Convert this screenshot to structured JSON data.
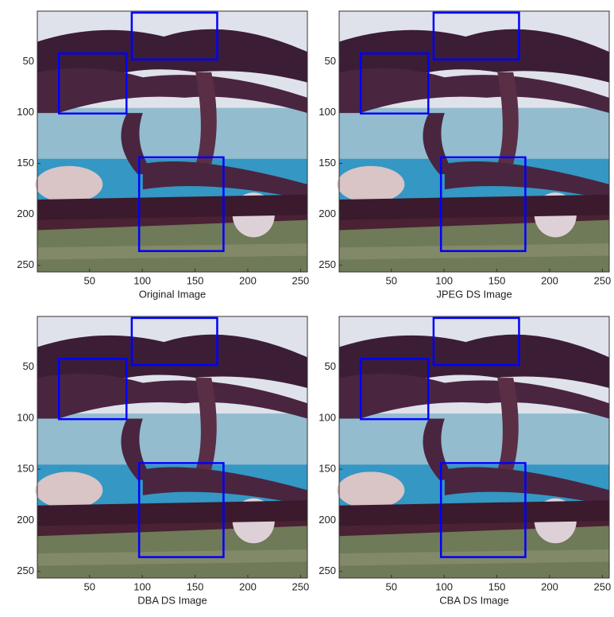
{
  "chart_data": [
    {
      "type": "image",
      "xlabel": "Original Image",
      "xlim": [
        0.5,
        256.5
      ],
      "ylim": [
        0.5,
        256.5
      ],
      "y_reversed": true,
      "xticks": [
        50,
        100,
        150,
        200,
        250
      ],
      "yticks": [
        50,
        100,
        150,
        200,
        250
      ],
      "box_color": "#0000ff",
      "boxes": [
        {
          "x": [
            90,
            171
          ],
          "y": [
            2,
            48
          ]
        },
        {
          "x": [
            21,
            85
          ],
          "y": [
            42,
            101
          ]
        },
        {
          "x": [
            97,
            177
          ],
          "y": [
            144,
            236
          ]
        }
      ]
    },
    {
      "type": "image",
      "xlabel": "JPEG DS Image",
      "xlim": [
        0.5,
        256.5
      ],
      "ylim": [
        0.5,
        256.5
      ],
      "y_reversed": true,
      "xticks": [
        50,
        100,
        150,
        200,
        250
      ],
      "yticks": [
        50,
        100,
        150,
        200,
        250
      ],
      "box_color": "#0000ff",
      "boxes": [
        {
          "x": [
            90,
            171
          ],
          "y": [
            2,
            48
          ]
        },
        {
          "x": [
            21,
            85
          ],
          "y": [
            42,
            101
          ]
        },
        {
          "x": [
            97,
            177
          ],
          "y": [
            144,
            236
          ]
        }
      ]
    },
    {
      "type": "image",
      "xlabel": "DBA DS Image",
      "xlim": [
        0.5,
        256.5
      ],
      "ylim": [
        0.5,
        256.5
      ],
      "y_reversed": true,
      "xticks": [
        50,
        100,
        150,
        200,
        250
      ],
      "yticks": [
        50,
        100,
        150,
        200,
        250
      ],
      "box_color": "#0000ff",
      "boxes": [
        {
          "x": [
            90,
            171
          ],
          "y": [
            2,
            48
          ]
        },
        {
          "x": [
            21,
            85
          ],
          "y": [
            42,
            101
          ]
        },
        {
          "x": [
            97,
            177
          ],
          "y": [
            144,
            236
          ]
        }
      ]
    },
    {
      "type": "image",
      "xlabel": "CBA DS Image",
      "xlim": [
        0.5,
        256.5
      ],
      "ylim": [
        0.5,
        256.5
      ],
      "y_reversed": true,
      "xticks": [
        50,
        100,
        150,
        200,
        250
      ],
      "yticks": [
        50,
        100,
        150,
        200,
        250
      ],
      "box_color": "#0000ff",
      "boxes": [
        {
          "x": [
            90,
            171
          ],
          "y": [
            2,
            48
          ]
        },
        {
          "x": [
            21,
            85
          ],
          "y": [
            42,
            101
          ]
        },
        {
          "x": [
            97,
            177
          ],
          "y": [
            144,
            236
          ]
        }
      ]
    }
  ]
}
